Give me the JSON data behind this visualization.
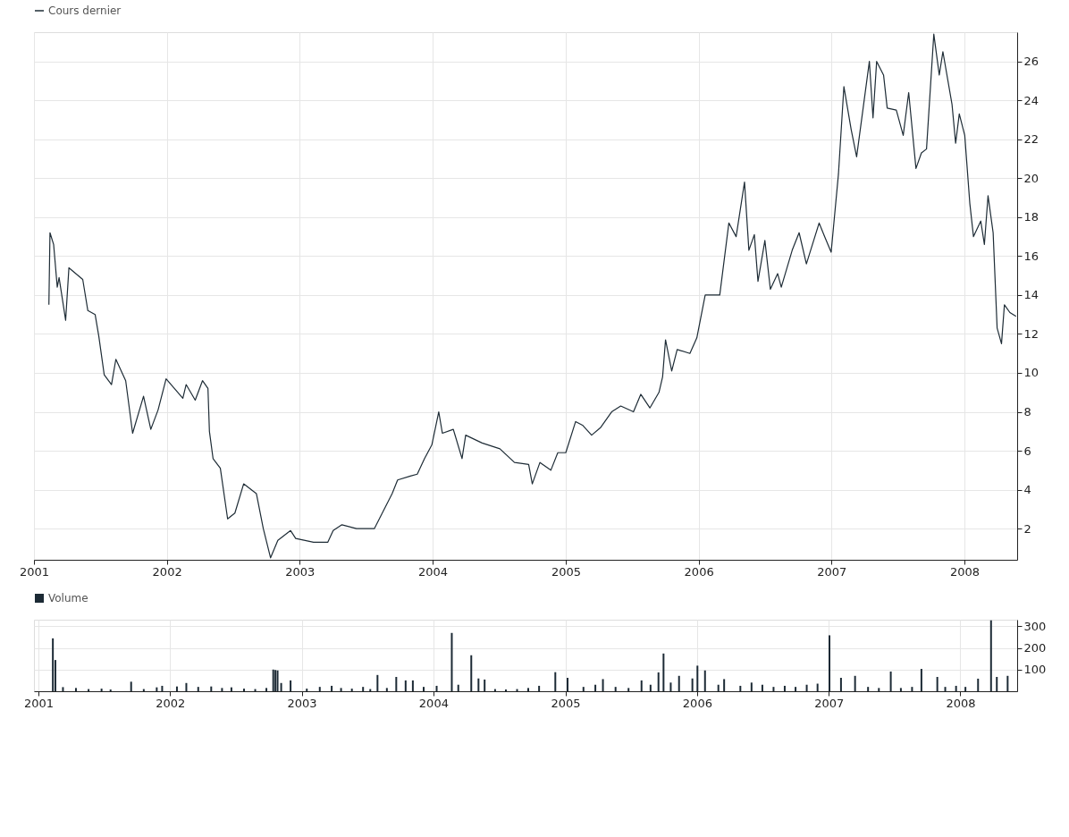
{
  "chart_data": [
    {
      "type": "line",
      "x": [
        "2001-02-11",
        "2001-02-14",
        "2001-02-24",
        "2001-03-06",
        "2001-03-11",
        "2001-03-29",
        "2001-04-07",
        "2001-05-15",
        "2001-05-29",
        "2001-06-18",
        "2001-06-28",
        "2001-07-13",
        "2001-08-02",
        "2001-08-14",
        "2001-09-10",
        "2001-09-29",
        "2001-10-29",
        "2001-11-18",
        "2001-12-08",
        "2001-12-30",
        "2002-02-14",
        "2002-02-23",
        "2002-03-20",
        "2002-04-09",
        "2002-04-24",
        "2002-04-28",
        "2002-05-08",
        "2002-05-28",
        "2002-06-17",
        "2002-07-07",
        "2002-07-31",
        "2002-09-04",
        "2002-09-23",
        "2002-10-13",
        "2002-11-02",
        "2002-12-07",
        "2002-12-21",
        "2003-02-08",
        "2003-03-19",
        "2003-04-03",
        "2003-04-27",
        "2003-06-06",
        "2003-07-25",
        "2003-09-12",
        "2003-09-27",
        "2003-11-01",
        "2003-11-20",
        "2003-12-10",
        "2003-12-30",
        "2004-01-18",
        "2004-01-28",
        "2004-02-27",
        "2004-03-22",
        "2004-04-01",
        "2004-05-16",
        "2004-07-04",
        "2004-08-13",
        "2004-09-21",
        "2004-10-01",
        "2004-10-22",
        "2004-11-21",
        "2004-12-10",
        "2005-01-01",
        "2005-01-28",
        "2005-02-17",
        "2005-03-13",
        "2005-04-07",
        "2005-05-07",
        "2005-06-01",
        "2005-07-06",
        "2005-07-26",
        "2005-08-20",
        "2005-09-14",
        "2005-09-24",
        "2005-10-02",
        "2005-10-19",
        "2005-11-03",
        "2005-12-08",
        "2005-12-27",
        "2006-01-19",
        "2006-02-28",
        "2006-03-25",
        "2006-04-14",
        "2006-05-07",
        "2006-05-19",
        "2006-06-03",
        "2006-06-13",
        "2006-07-02",
        "2006-07-17",
        "2006-08-06",
        "2006-08-16",
        "2006-09-15",
        "2006-10-04",
        "2006-10-24",
        "2006-11-28",
        "2006-12-13",
        "2006-12-31",
        "2007-01-20",
        "2007-02-04",
        "2007-02-24",
        "2007-03-11",
        "2007-03-31",
        "2007-04-15",
        "2007-04-25",
        "2007-05-05",
        "2007-05-24",
        "2007-06-03",
        "2007-06-28",
        "2007-07-17",
        "2007-08-01",
        "2007-08-21",
        "2007-09-05",
        "2007-09-19",
        "2007-10-09",
        "2007-10-24",
        "2007-11-03",
        "2007-11-28",
        "2007-12-08",
        "2007-12-18",
        "2008-01-02",
        "2008-01-16",
        "2008-01-26",
        "2008-02-15",
        "2008-02-25",
        "2008-03-06",
        "2008-03-20",
        "2008-03-31",
        "2008-04-12",
        "2008-04-20",
        "2008-05-05",
        "2008-05-22"
      ],
      "series": [
        {
          "name": "Cours dernier",
          "color": "#1e2c36",
          "values": [
            13.5,
            17.2,
            16.6,
            14.4,
            14.9,
            12.7,
            15.4,
            14.8,
            13.2,
            13.0,
            11.9,
            9.9,
            9.4,
            10.7,
            9.6,
            6.9,
            8.8,
            7.1,
            8.1,
            9.7,
            8.7,
            9.4,
            8.6,
            9.6,
            9.2,
            7.0,
            5.6,
            5.1,
            2.5,
            2.8,
            4.3,
            3.8,
            2.0,
            0.5,
            1.4,
            1.9,
            1.5,
            1.3,
            1.3,
            1.9,
            2.2,
            2.0,
            2.0,
            3.8,
            4.5,
            4.7,
            4.8,
            5.6,
            6.3,
            8.0,
            6.9,
            7.1,
            5.6,
            6.8,
            6.4,
            6.1,
            5.4,
            5.3,
            4.3,
            5.4,
            5.0,
            5.9,
            5.9,
            7.5,
            7.3,
            6.8,
            7.2,
            8.0,
            8.3,
            8.0,
            8.9,
            8.2,
            9.0,
            9.8,
            11.7,
            10.1,
            11.2,
            11.0,
            11.8,
            14.0,
            14.0,
            17.7,
            17.0,
            19.8,
            16.3,
            17.1,
            14.7,
            16.8,
            14.3,
            15.1,
            14.4,
            16.3,
            17.2,
            15.6,
            17.7,
            17.0,
            16.2,
            20.2,
            24.7,
            22.5,
            21.1,
            23.9,
            26.0,
            23.1,
            26.0,
            25.3,
            23.6,
            23.5,
            22.2,
            24.4,
            20.5,
            21.3,
            21.5,
            27.4,
            25.3,
            26.5,
            23.8,
            21.8,
            23.3,
            22.2,
            18.7,
            17.0,
            17.8,
            16.6,
            19.1,
            17.2,
            12.3,
            11.5,
            13.5,
            13.1,
            12.9
          ]
        }
      ],
      "xlim": [
        "2001-01-01",
        "2008-05-25"
      ],
      "xticks": [
        "2001",
        "2002",
        "2003",
        "2004",
        "2005",
        "2006",
        "2007",
        "2008"
      ],
      "ylim": [
        0.4,
        27.5
      ],
      "yticks": [
        2,
        4,
        6,
        8,
        10,
        12,
        14,
        16,
        18,
        20,
        22,
        24,
        26
      ],
      "grid": true,
      "legend": "top"
    },
    {
      "type": "bar",
      "x": [
        "2001-02-10",
        "2001-02-17",
        "2001-03-10",
        "2001-04-15",
        "2001-05-20",
        "2001-06-25",
        "2001-07-20",
        "2001-09-15",
        "2001-10-20",
        "2001-11-25",
        "2001-12-10",
        "2002-01-20",
        "2002-02-15",
        "2002-03-20",
        "2002-04-25",
        "2002-05-25",
        "2002-06-20",
        "2002-07-25",
        "2002-08-25",
        "2002-09-25",
        "2002-10-14",
        "2002-10-20",
        "2002-10-26",
        "2002-11-05",
        "2002-12-01",
        "2003-01-15",
        "2003-02-20",
        "2003-03-25",
        "2003-04-20",
        "2003-05-20",
        "2003-06-20",
        "2003-07-10",
        "2003-07-30",
        "2003-08-25",
        "2003-09-20",
        "2003-10-16",
        "2003-11-05",
        "2003-12-05",
        "2004-01-10",
        "2004-02-21",
        "2004-03-10",
        "2004-04-15",
        "2004-05-05",
        "2004-05-22",
        "2004-06-20",
        "2004-07-20",
        "2004-08-20",
        "2004-09-20",
        "2004-10-20",
        "2004-12-04",
        "2005-01-07",
        "2005-02-20",
        "2005-03-25",
        "2005-04-15",
        "2005-05-20",
        "2005-06-25",
        "2005-07-31",
        "2005-08-25",
        "2005-09-16",
        "2005-09-30",
        "2005-10-20",
        "2005-11-12",
        "2005-12-19",
        "2006-01-02",
        "2006-01-23",
        "2006-03-01",
        "2006-03-17",
        "2006-05-01",
        "2006-06-01",
        "2006-07-01",
        "2006-08-01",
        "2006-09-01",
        "2006-10-01",
        "2006-11-01",
        "2006-12-01",
        "2007-01-03",
        "2007-02-04",
        "2007-03-15",
        "2007-04-20",
        "2007-05-20",
        "2007-06-22",
        "2007-07-20",
        "2007-08-20",
        "2007-09-15",
        "2007-10-29",
        "2007-11-20",
        "2007-12-20",
        "2008-01-15",
        "2008-02-19",
        "2008-03-26",
        "2008-04-11",
        "2008-05-11"
      ],
      "series": [
        {
          "name": "Volume",
          "color": "#1c2a35",
          "values": [
            244,
            144,
            19,
            15,
            10,
            12,
            8,
            44,
            10,
            18,
            25,
            22,
            38,
            20,
            22,
            15,
            18,
            12,
            10,
            15,
            100,
            98,
            96,
            38,
            50,
            12,
            20,
            25,
            15,
            12,
            20,
            10,
            75,
            15,
            66,
            50,
            50,
            20,
            25,
            269,
            30,
            166,
            59,
            54,
            10,
            8,
            10,
            15,
            25,
            88,
            62,
            20,
            30,
            56,
            20,
            15,
            50,
            30,
            87,
            174,
            40,
            71,
            59,
            118,
            96,
            30,
            56,
            25,
            40,
            30,
            20,
            25,
            20,
            30,
            35,
            258,
            62,
            71,
            20,
            15,
            91,
            15,
            20,
            103,
            66,
            20,
            25,
            20,
            58,
            327,
            66,
            71
          ]
        }
      ],
      "xlim": [
        "2001-01-01",
        "2008-05-25"
      ],
      "xticks": [
        "2001",
        "2002",
        "2003",
        "2004",
        "2005",
        "2006",
        "2007",
        "2008"
      ],
      "ylim": [
        0,
        330
      ],
      "yticks": [
        100,
        200,
        300
      ],
      "grid": true,
      "legend": "top"
    }
  ]
}
